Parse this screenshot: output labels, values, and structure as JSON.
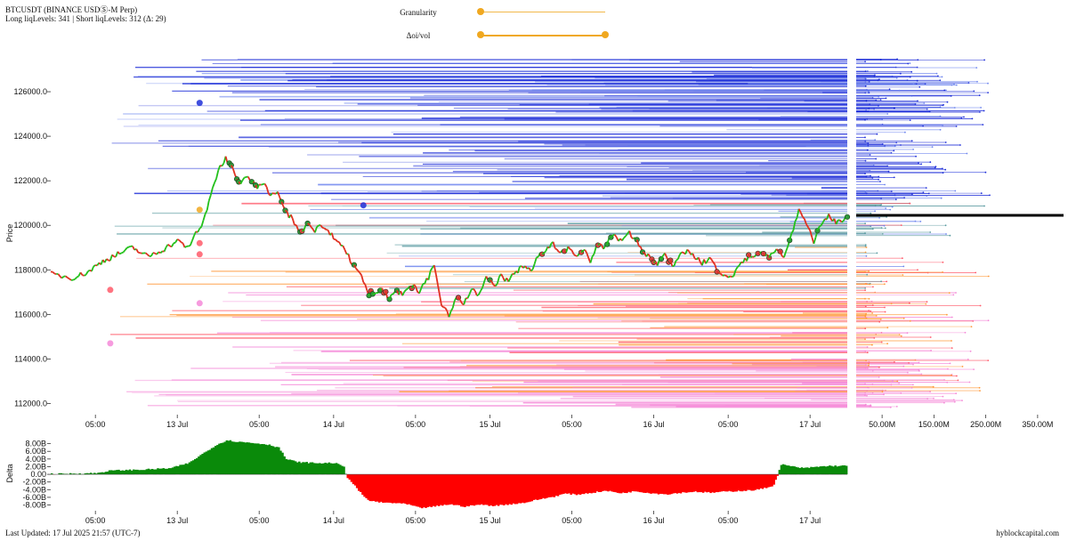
{
  "header": {
    "title": "BTCUSDT (BINANCE USDⓈ-M Perp)",
    "subtitle": "Long liqLevels: 341 | Short liqLevels: 312 (Δ: 29)"
  },
  "controls": {
    "granularity_label": "Granularity",
    "granularity_value": 0.0,
    "doi_label": "Δoi/vol",
    "doi_range": [
      0.0,
      1.0
    ]
  },
  "footer": {
    "updated": "Last Updated: 17 Jul 2025 21:57 (UTC-7)",
    "brand": "hyblockcapital.com"
  },
  "colors": {
    "up": "#22c01a",
    "down": "#e03020",
    "delta_pos": "#0a8a0a",
    "delta_neg": "#ff0000",
    "short_liq": "#1f2fd8",
    "short_liq_light": "#6f86ee",
    "teal_liq": "#5a9aa0",
    "long_liq_orange": "#ff9a3c",
    "long_liq_red": "#ff5a6a",
    "long_liq_pink": "#f58ad8",
    "current_price_line": "#000000"
  },
  "chart_data": [
    {
      "type": "line",
      "name": "price",
      "ylabel": "Price",
      "ylim": [
        111500,
        127800
      ],
      "yticks": [
        "112000.0",
        "114000.0",
        "116000.0",
        "118000.0",
        "120000.0",
        "122000.0",
        "124000.0",
        "126000.0"
      ],
      "xlim_hours": [
        0,
        107
      ],
      "xticks": [
        {
          "h": 6,
          "label": "05:00"
        },
        {
          "h": 17,
          "label": "13 Jul"
        },
        {
          "h": 28,
          "label": "05:00"
        },
        {
          "h": 38,
          "label": "14 Jul"
        },
        {
          "h": 49,
          "label": "05:00"
        },
        {
          "h": 59,
          "label": "15 Jul"
        },
        {
          "h": 70,
          "label": "05:00"
        },
        {
          "h": 81,
          "label": "16 Jul"
        },
        {
          "h": 91,
          "label": "05:00"
        },
        {
          "h": 102,
          "label": "17 Jul"
        }
      ],
      "keypoints": [
        [
          0,
          117800
        ],
        [
          3,
          117650
        ],
        [
          5,
          117900
        ],
        [
          7,
          118400
        ],
        [
          9,
          118700
        ],
        [
          11,
          119000
        ],
        [
          13,
          118600
        ],
        [
          15,
          118900
        ],
        [
          17,
          119300
        ],
        [
          18.5,
          119000
        ],
        [
          19.5,
          119700
        ],
        [
          20.5,
          120100
        ],
        [
          21.5,
          121300
        ],
        [
          22.5,
          122500
        ],
        [
          23.5,
          123000
        ],
        [
          24.5,
          122600
        ],
        [
          25.5,
          121800
        ],
        [
          26.5,
          122300
        ],
        [
          27.5,
          121700
        ],
        [
          28.5,
          121900
        ],
        [
          29.5,
          121300
        ],
        [
          30.5,
          121500
        ],
        [
          31.5,
          120600
        ],
        [
          32.5,
          120300
        ],
        [
          33.5,
          119700
        ],
        [
          34.5,
          120100
        ],
        [
          35.5,
          119800
        ],
        [
          36.5,
          120000
        ],
        [
          37.5,
          119600
        ],
        [
          38.5,
          119400
        ],
        [
          39.5,
          118900
        ],
        [
          40.5,
          118300
        ],
        [
          41.5,
          117900
        ],
        [
          42.5,
          117000
        ],
        [
          43.5,
          116900
        ],
        [
          44.5,
          117200
        ],
        [
          45.5,
          116700
        ],
        [
          46.5,
          117000
        ],
        [
          47.5,
          116900
        ],
        [
          48.5,
          117300
        ],
        [
          49.5,
          117000
        ],
        [
          50.5,
          117500
        ],
        [
          51.5,
          118200
        ],
        [
          52.5,
          116500
        ],
        [
          53.5,
          116000
        ],
        [
          54.5,
          116800
        ],
        [
          55.5,
          116500
        ],
        [
          56.5,
          117100
        ],
        [
          57.5,
          116900
        ],
        [
          58.5,
          117600
        ],
        [
          59.5,
          117300
        ],
        [
          60.5,
          117700
        ],
        [
          61.5,
          117500
        ],
        [
          62.5,
          117900
        ],
        [
          63.5,
          118200
        ],
        [
          64.5,
          118000
        ],
        [
          65.5,
          118600
        ],
        [
          66.5,
          118800
        ],
        [
          67.5,
          119200
        ],
        [
          68.5,
          118700
        ],
        [
          69.5,
          119000
        ],
        [
          70.5,
          118600
        ],
        [
          71.5,
          118900
        ],
        [
          72.5,
          118400
        ],
        [
          73.5,
          119200
        ],
        [
          74.5,
          119000
        ],
        [
          75.5,
          119600
        ],
        [
          76.5,
          119300
        ],
        [
          77.5,
          119700
        ],
        [
          78.5,
          119400
        ],
        [
          79.5,
          118900
        ],
        [
          80.5,
          118500
        ],
        [
          81.5,
          118300
        ],
        [
          82.5,
          118700
        ],
        [
          83.5,
          118200
        ],
        [
          84.5,
          118600
        ],
        [
          85.5,
          118900
        ],
        [
          86.5,
          118600
        ],
        [
          87.5,
          118300
        ],
        [
          88.5,
          118500
        ],
        [
          89.5,
          118000
        ],
        [
          90.5,
          117800
        ],
        [
          91.5,
          117600
        ],
        [
          92.5,
          118200
        ],
        [
          93.5,
          118500
        ],
        [
          94.5,
          118700
        ],
        [
          95.5,
          118900
        ],
        [
          96.5,
          118600
        ],
        [
          97.5,
          119000
        ],
        [
          98.5,
          118500
        ],
        [
          99.5,
          119600
        ],
        [
          100.5,
          120700
        ],
        [
          101.5,
          120100
        ],
        [
          102.5,
          119300
        ],
        [
          103.5,
          120000
        ],
        [
          104.5,
          120500
        ],
        [
          105.5,
          120100
        ],
        [
          106.5,
          120300
        ],
        [
          107,
          120300
        ]
      ]
    },
    {
      "type": "bar",
      "name": "liquidation-profile",
      "xticks": [
        "50.00M",
        "150.00M",
        "250.00M",
        "350.00M"
      ],
      "xlim": [
        0,
        400
      ],
      "current_price_marker": 120450
    },
    {
      "type": "area",
      "name": "delta",
      "ylabel": "Delta",
      "ylim": [
        -9.5,
        10
      ],
      "yticks": [
        "8.00B",
        "6.00B",
        "4.00B",
        "2.00B",
        "0.00",
        "-2.00B",
        "-4.00B",
        "-6.00B",
        "-8.00B"
      ],
      "xlim_hours": [
        0,
        107
      ],
      "xticks": [
        {
          "h": 6,
          "label": "05:00"
        },
        {
          "h": 17,
          "label": "13 Jul"
        },
        {
          "h": 28,
          "label": "05:00"
        },
        {
          "h": 38,
          "label": "14 Jul"
        },
        {
          "h": 49,
          "label": "05:00"
        },
        {
          "h": 59,
          "label": "15 Jul"
        },
        {
          "h": 70,
          "label": "05:00"
        },
        {
          "h": 81,
          "label": "16 Jul"
        },
        {
          "h": 91,
          "label": "05:00"
        },
        {
          "h": 102,
          "label": "17 Jul"
        }
      ],
      "keypoints": [
        [
          0,
          0.1
        ],
        [
          6,
          0.3
        ],
        [
          8,
          1.0
        ],
        [
          12,
          1.2
        ],
        [
          16,
          1.6
        ],
        [
          18.5,
          3.0
        ],
        [
          20,
          5.0
        ],
        [
          22,
          7.5
        ],
        [
          23.5,
          8.9
        ],
        [
          25,
          8.5
        ],
        [
          27,
          8.2
        ],
        [
          29,
          7.8
        ],
        [
          30.5,
          7.0
        ],
        [
          31.5,
          4.0
        ],
        [
          33,
          3.2
        ],
        [
          36,
          2.9
        ],
        [
          38,
          3.0
        ],
        [
          39.3,
          1.9
        ],
        [
          39.6,
          -0.5
        ],
        [
          40.5,
          -2.5
        ],
        [
          41.5,
          -4.8
        ],
        [
          42.5,
          -6.8
        ],
        [
          44.5,
          -7.4
        ],
        [
          46.5,
          -7.5
        ],
        [
          48,
          -7.9
        ],
        [
          49.5,
          -8.8
        ],
        [
          51,
          -8.5
        ],
        [
          53.5,
          -7.8
        ],
        [
          55.5,
          -8.4
        ],
        [
          57.5,
          -7.9
        ],
        [
          59.5,
          -8.2
        ],
        [
          61.5,
          -7.8
        ],
        [
          63.5,
          -7.4
        ],
        [
          65.5,
          -6.5
        ],
        [
          67.5,
          -5.8
        ],
        [
          69,
          -5.0
        ],
        [
          70.5,
          -5.3
        ],
        [
          72.5,
          -4.8
        ],
        [
          74.5,
          -4.3
        ],
        [
          76.5,
          -4.9
        ],
        [
          78.5,
          -4.4
        ],
        [
          80.5,
          -4.9
        ],
        [
          82.5,
          -5.2
        ],
        [
          84.5,
          -4.8
        ],
        [
          86.5,
          -4.5
        ],
        [
          88.5,
          -4.8
        ],
        [
          90.5,
          -4.5
        ],
        [
          92.5,
          -4.3
        ],
        [
          94.5,
          -4.1
        ],
        [
          96,
          -3.5
        ],
        [
          97,
          -2.8
        ],
        [
          97.7,
          0.8
        ],
        [
          98,
          2.6
        ],
        [
          99,
          2.2
        ],
        [
          101,
          1.6
        ],
        [
          102.5,
          1.9
        ],
        [
          104.5,
          2.2
        ],
        [
          106,
          2.2
        ],
        [
          107,
          2.2
        ]
      ]
    }
  ]
}
